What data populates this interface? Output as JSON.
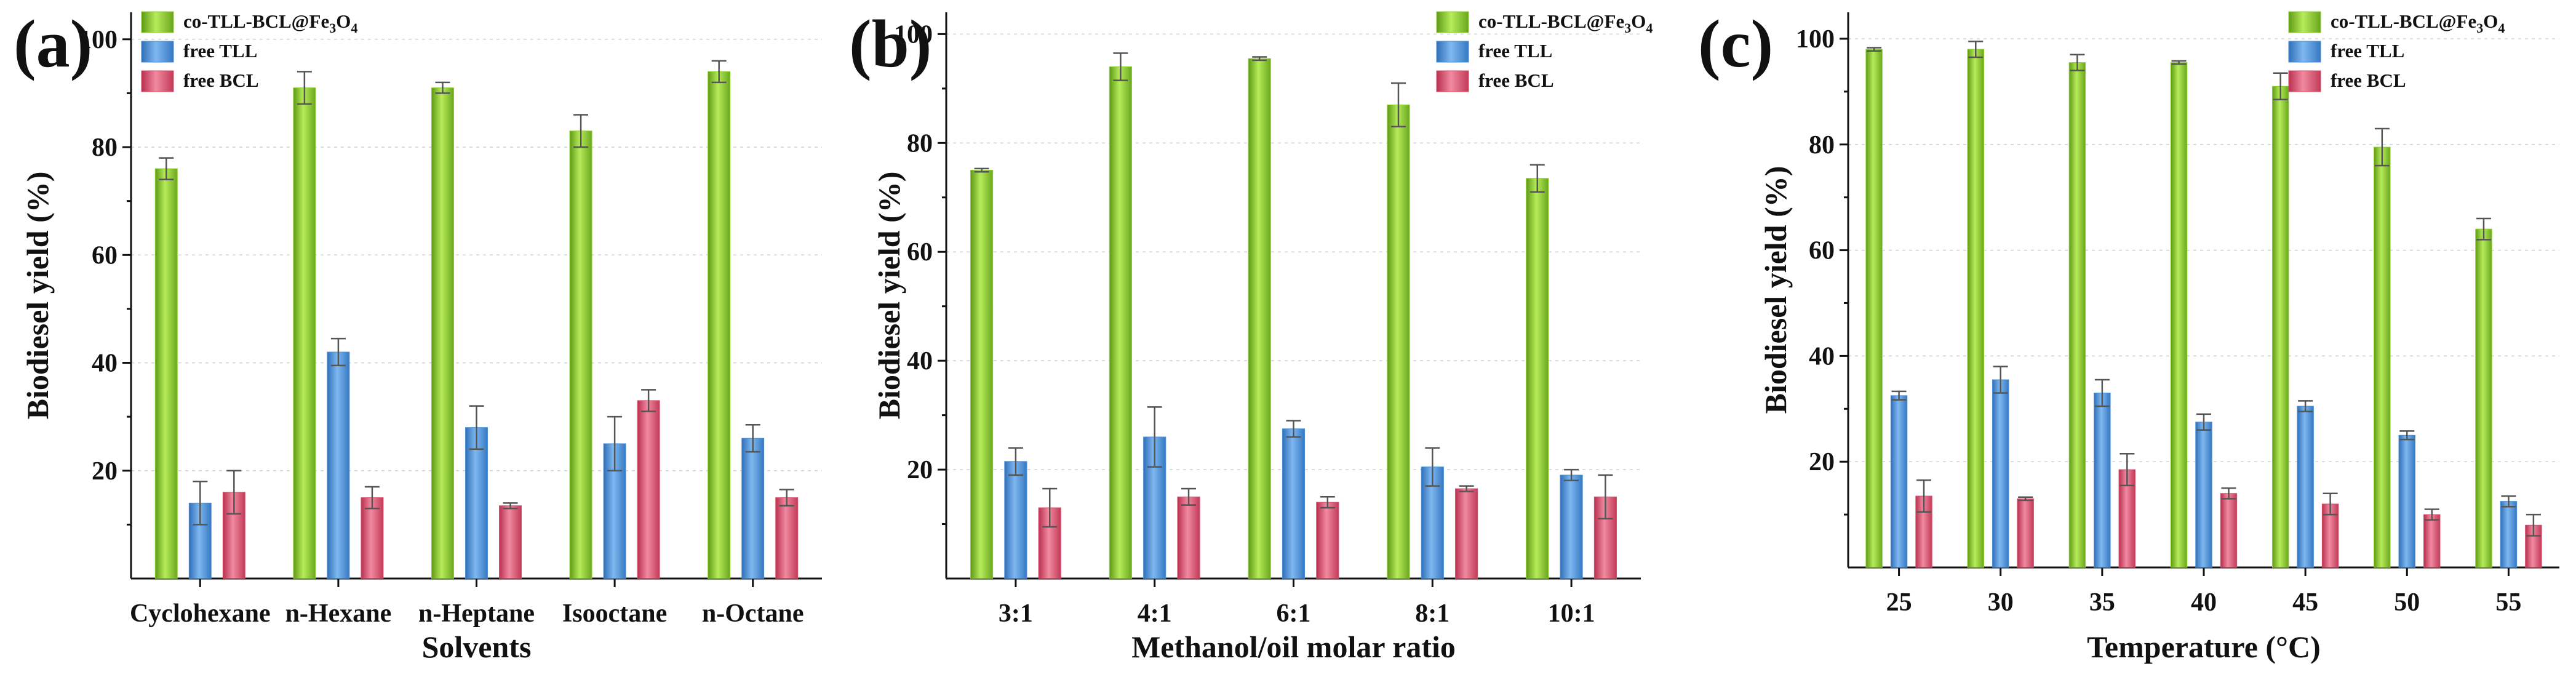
{
  "colors": {
    "co": "#8ccf2e",
    "tll": "#4a90d9",
    "bcl": "#d9506a"
  },
  "legend": {
    "co_prefix": "co-TLL-BCL@Fe",
    "co_sub1": "3",
    "co_mid": "O",
    "co_sub2": "4",
    "tll": "free TLL",
    "bcl": "free BCL"
  },
  "chart_data": [
    {
      "type": "bar",
      "panel_label": "(a)",
      "xlabel": "Solvents",
      "ylabel": "Biodiesel yield (%)",
      "ylim": [
        0,
        105
      ],
      "yticks": [
        20,
        40,
        60,
        80,
        100
      ],
      "grid": true,
      "legend_position": "top-left",
      "categories": [
        "Cyclohexane",
        "n-Hexane",
        "n-Heptane",
        "Isooctane",
        "n-Octane"
      ],
      "series": [
        {
          "name": "co-TLL-BCL@Fe3O4",
          "values": [
            76,
            91,
            91,
            83,
            94
          ],
          "errors": [
            2,
            3,
            1,
            3,
            2
          ]
        },
        {
          "name": "free TLL",
          "values": [
            14,
            42,
            28,
            25,
            26
          ],
          "errors": [
            4,
            2.5,
            4,
            5,
            2.5
          ]
        },
        {
          "name": "free BCL",
          "values": [
            16,
            15,
            13.5,
            33,
            15
          ],
          "errors": [
            4,
            2,
            0.5,
            2,
            1.5
          ]
        }
      ]
    },
    {
      "type": "bar",
      "panel_label": "(b)",
      "xlabel": "Methanol/oil molar ratio",
      "ylabel": "Biodiesel yield (%)",
      "ylim": [
        0,
        104
      ],
      "yticks": [
        20,
        40,
        60,
        80,
        100
      ],
      "grid": true,
      "legend_position": "top-right",
      "categories": [
        "3:1",
        "4:1",
        "6:1",
        "8:1",
        "10:1"
      ],
      "series": [
        {
          "name": "co-TLL-BCL@Fe3O4",
          "values": [
            75,
            94,
            95.5,
            87,
            73.5
          ],
          "errors": [
            0.3,
            2.5,
            0.3,
            4,
            2.5
          ]
        },
        {
          "name": "free TLL",
          "values": [
            21.5,
            26,
            27.5,
            20.5,
            19
          ],
          "errors": [
            2.5,
            5.5,
            1.5,
            3.5,
            1
          ]
        },
        {
          "name": "free BCL",
          "values": [
            13,
            15,
            14,
            16.5,
            15
          ],
          "errors": [
            3.5,
            1.5,
            1,
            0.5,
            4
          ]
        }
      ]
    },
    {
      "type": "bar",
      "panel_label": "(c)",
      "xlabel": "Temperature (°C)",
      "ylabel": "Biodiesel yield (%)",
      "ylim": [
        0,
        105
      ],
      "yticks": [
        20,
        40,
        60,
        80,
        100
      ],
      "grid": true,
      "legend_position": "top-right",
      "categories": [
        "25",
        "30",
        "35",
        "40",
        "45",
        "50",
        "55"
      ],
      "series": [
        {
          "name": "co-TLL-BCL@Fe3O4",
          "values": [
            98,
            98,
            95.5,
            95.5,
            91,
            79.5,
            64
          ],
          "errors": [
            0.3,
            1.5,
            1.5,
            0.3,
            2.5,
            3.5,
            2
          ]
        },
        {
          "name": "free TLL",
          "values": [
            32.5,
            35.5,
            33,
            27.5,
            30.5,
            25,
            12.5
          ],
          "errors": [
            0.8,
            2.5,
            2.5,
            1.5,
            1,
            0.8,
            1
          ]
        },
        {
          "name": "free BCL",
          "values": [
            13.5,
            13,
            18.5,
            14,
            12,
            10,
            8
          ],
          "errors": [
            3,
            0.3,
            3,
            1,
            2,
            1,
            2
          ]
        }
      ]
    }
  ]
}
